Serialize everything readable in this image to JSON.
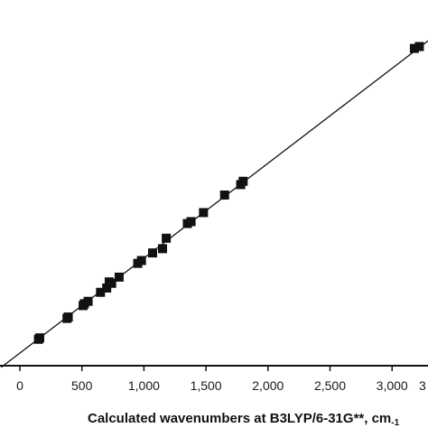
{
  "chart_data": {
    "type": "scatter",
    "title": "",
    "xlabel": "Calculated wavenumbers at B3LYP/6-31G**, cm",
    "xlabel_suffix": "-1",
    "ylabel": "",
    "xlim": [
      -150,
      3400
    ],
    "ylim": [
      -150,
      3400
    ],
    "x_ticks": [
      0,
      500,
      1000,
      1500,
      2000,
      2500,
      3000
    ],
    "x_tick_labels": [
      "0",
      "500",
      "1,000",
      "1,500",
      "2,000",
      "2,500",
      "3,000"
    ],
    "x_tick_labels_clipped": [
      "3"
    ],
    "grid": false,
    "fit_line": {
      "slope": 1,
      "intercept": 0
    },
    "series": [
      {
        "marker": "square",
        "color": "#111111",
        "x": [
          150,
          160,
          380,
          390,
          510,
          520,
          550,
          650,
          700,
          720,
          740,
          800,
          950,
          980,
          1070,
          1150,
          1180,
          1350,
          1380,
          1480,
          1650,
          1780,
          1800,
          3180,
          3220
        ],
        "y": [
          145,
          160,
          365,
          380,
          500,
          520,
          545,
          640,
          685,
          750,
          735,
          800,
          945,
          975,
          1055,
          1100,
          1210,
          1365,
          1385,
          1480,
          1665,
          1775,
          1810,
          3210,
          3230
        ]
      }
    ]
  }
}
